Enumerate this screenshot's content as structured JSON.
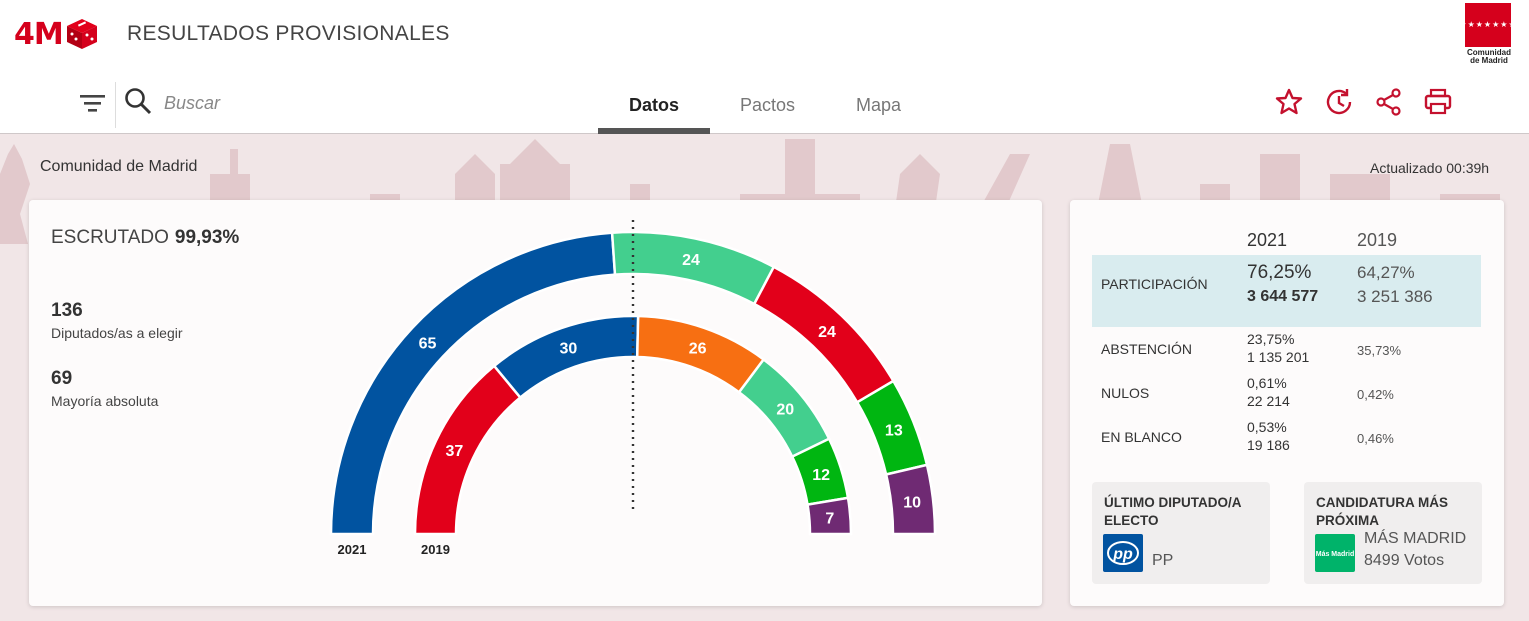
{
  "header": {
    "logo_text": "4M",
    "title": "RESULTADOS PROVISIONALES",
    "region_logo_label": "Comunidad de Madrid",
    "region_logo_stars": "★★★★★★★"
  },
  "nav": {
    "search_placeholder": "Buscar",
    "tabs": [
      {
        "label": "Datos",
        "active": true
      },
      {
        "label": "Pactos",
        "active": false
      },
      {
        "label": "Mapa",
        "active": false
      }
    ],
    "icons": [
      "filter-icon",
      "search-icon",
      "star-icon",
      "history-icon",
      "share-icon",
      "print-icon"
    ]
  },
  "page": {
    "region": "Comunidad de Madrid",
    "updated": "Actualizado 00:39h"
  },
  "summary": {
    "escrutado_label": "ESCRUTADO",
    "escrutado_value": "99,93%",
    "seats_total": "136",
    "seats_total_label": "Diputados/as a elegir",
    "majority": "69",
    "majority_label": "Mayoría absoluta"
  },
  "chart_data": {
    "type": "hemicycle",
    "categories": [
      "2021",
      "2019"
    ],
    "series": [
      {
        "year": "2021",
        "seats": [
          65,
          24,
          24,
          13,
          10
        ],
        "colors": [
          "#0153a0",
          "#43cf8e",
          "#e2001a",
          "#00b611",
          "#6f2a73"
        ]
      },
      {
        "year": "2019",
        "seats": [
          37,
          30,
          26,
          20,
          12,
          7
        ],
        "colors": [
          "#e2001a",
          "#0153a0",
          "#f76f12",
          "#43cf8e",
          "#00b611",
          "#6f2a73"
        ]
      }
    ],
    "total": 136,
    "majority": 69
  },
  "stats": {
    "col_2021": "2021",
    "col_2019": "2019",
    "rows": [
      {
        "label": "PARTICIPACIÓN",
        "v2021_pct": "76,25%",
        "v2021_abs": "3 644 577",
        "v2019_pct": "64,27%",
        "v2019_abs": "3 251 386"
      },
      {
        "label": "ABSTENCIÓN",
        "v2021_pct": "23,75%",
        "v2021_abs": "1 135 201",
        "v2019_pct": "35,73%"
      },
      {
        "label": "NULOS",
        "v2021_pct": "0,61%",
        "v2021_abs": "22 214",
        "v2019_pct": "0,42%"
      },
      {
        "label": "EN BLANCO",
        "v2021_pct": "0,53%",
        "v2021_abs": "19 186",
        "v2019_pct": "0,46%"
      }
    ]
  },
  "last_elected": {
    "title": "ÚLTIMO DIPUTADO/A ELECTO",
    "party": "PP",
    "logo_text": "pp",
    "color": "#0153a0"
  },
  "closest": {
    "title": "CANDIDATURA MÁS PRÓXIMA",
    "party": "MÁS MADRID",
    "votes": "8499 Votos",
    "logo_text": "Más Madrid",
    "color": "#00b36a"
  }
}
